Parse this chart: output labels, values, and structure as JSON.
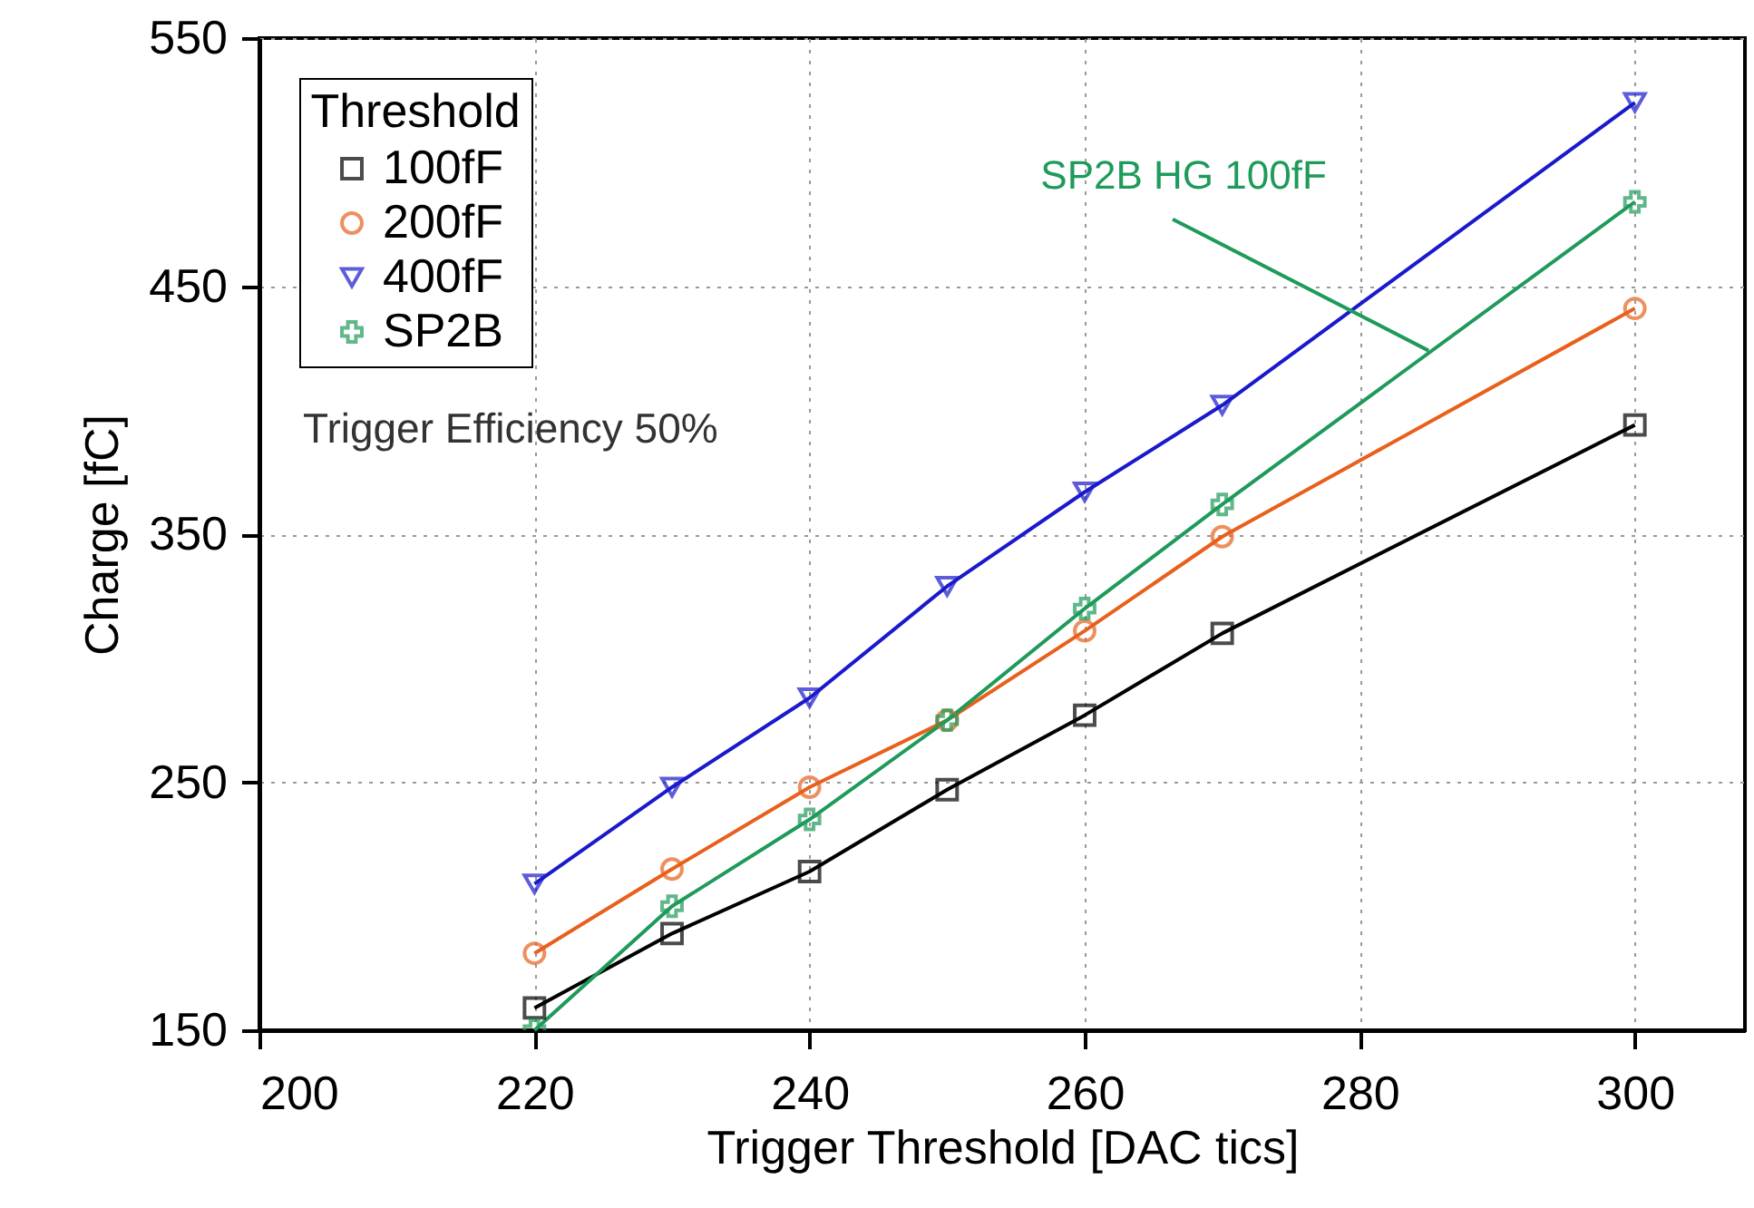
{
  "chart_data": {
    "type": "line",
    "xlabel": "Trigger Threshold [DAC tics]",
    "ylabel": "Charge [fC]",
    "legend_title": "Threshold",
    "x": [
      220,
      230,
      240,
      250,
      260,
      270,
      300
    ],
    "series": [
      {
        "name": "100fF",
        "color": "#000000",
        "marker": "square",
        "values": [
          159,
          189,
          214,
          247,
          277,
          310,
          394
        ]
      },
      {
        "name": "200fF",
        "color": "#e8601c",
        "marker": "circle",
        "values": [
          181,
          215,
          248,
          275,
          311,
          349,
          441
        ]
      },
      {
        "name": "400fF",
        "color": "#1a1acc",
        "marker": "triangle",
        "values": [
          209,
          248,
          284,
          329,
          367,
          402,
          524
        ]
      },
      {
        "name": "SP2B",
        "color": "#1e9a5a",
        "marker": "cross",
        "values": [
          150,
          200,
          235,
          275,
          320,
          362,
          484
        ]
      }
    ],
    "annotations": [
      "Trigger Efficiency 50%",
      {
        "text": "SP2B HG 100fF",
        "x": 285,
        "y": 424
      }
    ],
    "xlim": [
      200,
      308
    ],
    "ylim": [
      150,
      550
    ],
    "xticks": [
      200,
      220,
      240,
      260,
      280,
      300
    ],
    "yticks": [
      150,
      250,
      350,
      450,
      550
    ],
    "grid": true,
    "legend": "top left",
    "line_style": "solid"
  }
}
